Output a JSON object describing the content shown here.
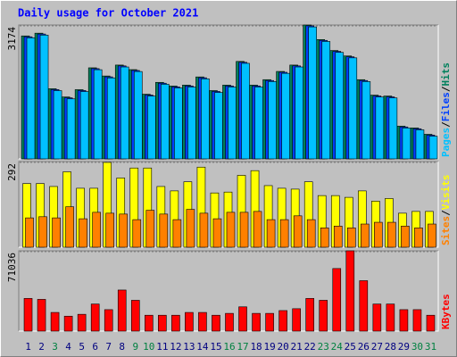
{
  "chart_data": [
    {
      "type": "bar",
      "title": "Daily usage for October 2021",
      "ylim": [
        0,
        3174
      ],
      "yticks": [
        3174
      ],
      "legend_separator": "/",
      "series": [
        {
          "name": "Hits",
          "color": "#00805c",
          "values": [
            2915,
            2980,
            1663,
            1468,
            1641,
            2159,
            1965,
            2224,
            2116,
            1533,
            1814,
            1727,
            1749,
            1943,
            1619,
            1749,
            2310,
            1749,
            1878,
            2073,
            2224,
            3174,
            2829,
            2569,
            2440,
            1878,
            1511,
            1490,
            777,
            734,
            583
          ]
        },
        {
          "name": "Files",
          "color": "#0040ff",
          "values": [
            2895,
            2960,
            1643,
            1448,
            1621,
            2139,
            1945,
            2204,
            2096,
            1513,
            1794,
            1707,
            1729,
            1923,
            1599,
            1729,
            2290,
            1729,
            1858,
            2053,
            2204,
            3154,
            2809,
            2549,
            2420,
            1858,
            1491,
            1470,
            757,
            714,
            563
          ]
        },
        {
          "name": "Pages",
          "color": "#00c0ff",
          "values": [
            2870,
            2935,
            1618,
            1423,
            1596,
            2114,
            1920,
            2179,
            2071,
            1488,
            1769,
            1682,
            1704,
            1898,
            1574,
            1704,
            2265,
            1704,
            1833,
            2028,
            2179,
            3129,
            2784,
            2524,
            2395,
            1833,
            1466,
            1445,
            732,
            689,
            538
          ]
        }
      ]
    },
    {
      "type": "bar",
      "ylim": [
        0,
        292
      ],
      "yticks": [
        292
      ],
      "legend_separator": "/",
      "series": [
        {
          "name": "Visits",
          "color": "#ffff00",
          "values": [
            217,
            217,
            207,
            257,
            201,
            201,
            289,
            236,
            270,
            270,
            207,
            192,
            223,
            273,
            185,
            188,
            245,
            261,
            210,
            201,
            198,
            223,
            176,
            176,
            170,
            192,
            157,
            166,
            116,
            122,
            122
          ]
        },
        {
          "name": "Sites",
          "color": "#ff8000",
          "values": [
            100,
            104,
            100,
            138,
            97,
            119,
            116,
            113,
            94,
            126,
            113,
            94,
            129,
            116,
            97,
            119,
            119,
            122,
            94,
            94,
            107,
            94,
            66,
            72,
            66,
            79,
            85,
            85,
            72,
            66,
            79
          ]
        }
      ]
    },
    {
      "type": "bar",
      "ylim": [
        0,
        71036
      ],
      "yticks": [
        71036
      ],
      "categories": [
        "1",
        "2",
        "3",
        "4",
        "5",
        "6",
        "7",
        "8",
        "9",
        "10",
        "11",
        "12",
        "13",
        "14",
        "15",
        "16",
        "17",
        "18",
        "19",
        "20",
        "21",
        "22",
        "23",
        "24",
        "25",
        "26",
        "27",
        "28",
        "29",
        "30",
        "31"
      ],
      "category_colors": [
        "#000080",
        "#000080",
        "#008040",
        "#000080",
        "#000080",
        "#000080",
        "#000080",
        "#000080",
        "#008040",
        "#008040",
        "#000080",
        "#000080",
        "#000080",
        "#000080",
        "#000080",
        "#008040",
        "#008040",
        "#000080",
        "#000080",
        "#000080",
        "#000080",
        "#000080",
        "#008040",
        "#008040",
        "#000080",
        "#000080",
        "#000080",
        "#000080",
        "#000080",
        "#008040",
        "#008040"
      ],
      "series": [
        {
          "name": "KBytes",
          "color": "#ff0000",
          "values": [
            28910,
            28084,
            16520,
            13216,
            14868,
            23954,
            18998,
            36344,
            27258,
            14042,
            14042,
            14042,
            16520,
            16520,
            14042,
            15694,
            21476,
            15694,
            15694,
            18172,
            19824,
            28910,
            27258,
            55342,
            71036,
            44604,
            23954,
            23954,
            18998,
            18998,
            14042
          ]
        }
      ]
    }
  ]
}
